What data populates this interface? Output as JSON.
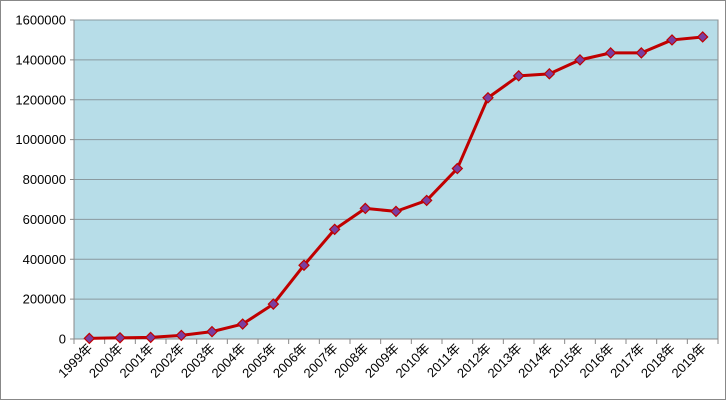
{
  "chart_data": {
    "type": "line",
    "categories": [
      "1999年",
      "2000年",
      "2001年",
      "2002年",
      "2003年",
      "2004年",
      "2005年",
      "2006年",
      "2007年",
      "2008年",
      "2009年",
      "2010年",
      "2011年",
      "2012年",
      "2013年",
      "2014年",
      "2015年",
      "2016年",
      "2017年",
      "2018年",
      "2019年"
    ],
    "values": [
      3000,
      6000,
      8000,
      18000,
      37000,
      75000,
      175000,
      370000,
      550000,
      655000,
      640000,
      695000,
      855000,
      1210000,
      1320000,
      1330000,
      1400000,
      1435000,
      1435000,
      1500000,
      1515000
    ],
    "color": "#c00000",
    "marker_color": "#7a3ea0",
    "ylim": [
      0,
      1600000
    ],
    "yticks": [
      0,
      200000,
      400000,
      600000,
      800000,
      1000000,
      1200000,
      1400000,
      1600000
    ],
    "grid": true
  }
}
